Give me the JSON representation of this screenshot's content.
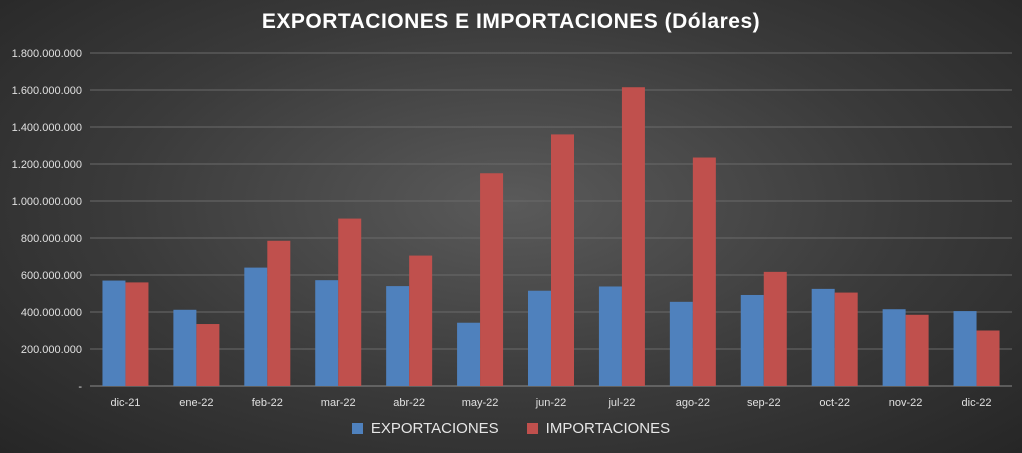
{
  "chart_data": {
    "type": "bar",
    "title": "EXPORTACIONES E IMPORTACIONES (Dólares)",
    "categories": [
      "dic-21",
      "ene-22",
      "feb-22",
      "mar-22",
      "abr-22",
      "may-22",
      "jun-22",
      "jul-22",
      "ago-22",
      "sep-22",
      "oct-22",
      "nov-22",
      "dic-22"
    ],
    "series": [
      {
        "name": "EXPORTACIONES",
        "color": "#4f81bd",
        "values": [
          570000000,
          412000000,
          640000000,
          572000000,
          540000000,
          342000000,
          515000000,
          538000000,
          455000000,
          492000000,
          525000000,
          415000000,
          405000000
        ]
      },
      {
        "name": "IMPORTACIONES",
        "color": "#c0504d",
        "values": [
          560000000,
          335000000,
          785000000,
          905000000,
          705000000,
          1150000000,
          1360000000,
          1615000000,
          1235000000,
          617000000,
          505000000,
          385000000,
          300000000
        ]
      }
    ],
    "ylim": [
      0,
      1800000000
    ],
    "yticks": [
      {
        "value": 0,
        "label": "-"
      },
      {
        "value": 200000000,
        "label": "200.000.000"
      },
      {
        "value": 400000000,
        "label": "400.000.000"
      },
      {
        "value": 600000000,
        "label": "600.000.000"
      },
      {
        "value": 800000000,
        "label": "800.000.000"
      },
      {
        "value": 1000000000,
        "label": "1.000.000.000"
      },
      {
        "value": 1200000000,
        "label": "1.200.000.000"
      },
      {
        "value": 1400000000,
        "label": "1.400.000.000"
      },
      {
        "value": 1600000000,
        "label": "1.600.000.000"
      },
      {
        "value": 1800000000,
        "label": "1.800.000.000"
      }
    ],
    "grid": true,
    "legend_position": "bottom"
  }
}
